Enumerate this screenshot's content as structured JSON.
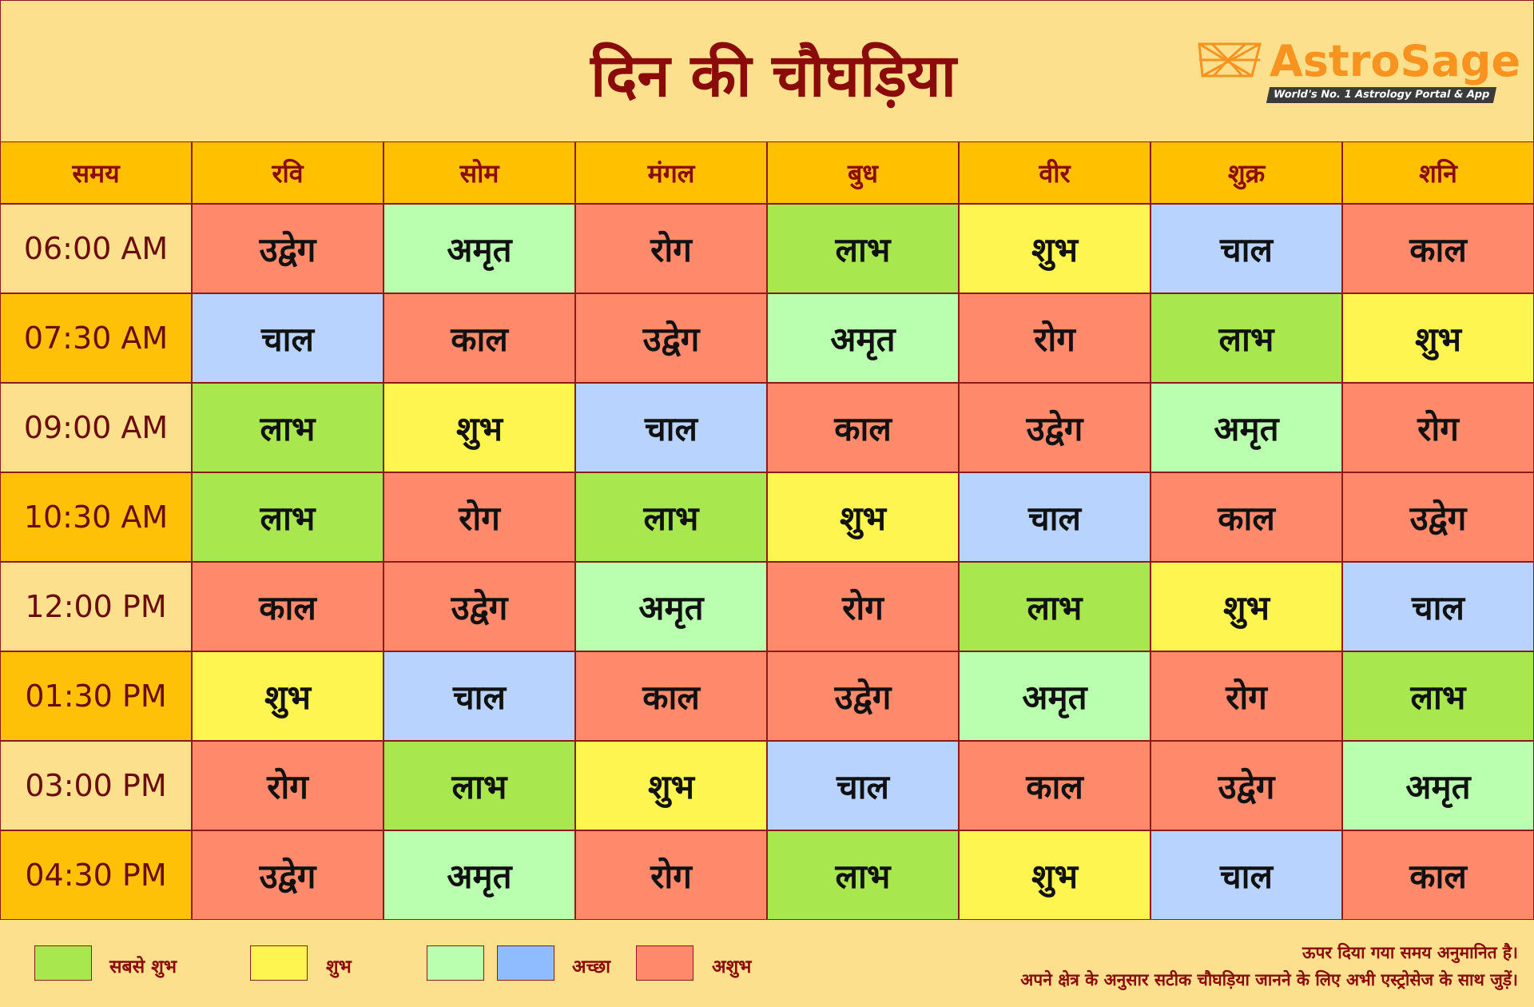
{
  "header": {
    "title": "दिन की चौघड़िया",
    "logo": {
      "brand": "AstroSage",
      "tagline": "World's No. 1 Astrology Portal & App"
    }
  },
  "table": {
    "columns": [
      "समय",
      "रवि",
      "सोम",
      "मंगल",
      "बुध",
      "वीर",
      "शुक्र",
      "शनि"
    ],
    "rows": [
      {
        "time": "06:00 AM",
        "time_color": "#fde08e",
        "cells": [
          {
            "text": "उद्वेग",
            "color": "#fe8a6b"
          },
          {
            "text": "अमृत",
            "color": "#baffb0"
          },
          {
            "text": "रोग",
            "color": "#fe8a6b"
          },
          {
            "text": "लाभ",
            "color": "#a8e84e"
          },
          {
            "text": "शुभ",
            "color": "#fff550"
          },
          {
            "text": "चाल",
            "color": "#b8d4fe"
          },
          {
            "text": "काल",
            "color": "#fe8a6b"
          }
        ]
      },
      {
        "time": "07:30 AM",
        "time_color": "#ffc107",
        "cells": [
          {
            "text": "चाल",
            "color": "#b8d4fe"
          },
          {
            "text": "काल",
            "color": "#fe8a6b"
          },
          {
            "text": "उद्वेग",
            "color": "#fe8a6b"
          },
          {
            "text": "अमृत",
            "color": "#baffb0"
          },
          {
            "text": "रोग",
            "color": "#fe8a6b"
          },
          {
            "text": "लाभ",
            "color": "#a8e84e"
          },
          {
            "text": "शुभ",
            "color": "#fff550"
          }
        ]
      },
      {
        "time": "09:00 AM",
        "time_color": "#fde08e",
        "cells": [
          {
            "text": "लाभ",
            "color": "#a8e84e"
          },
          {
            "text": "शुभ",
            "color": "#fff550"
          },
          {
            "text": "चाल",
            "color": "#b8d4fe"
          },
          {
            "text": "काल",
            "color": "#fe8a6b"
          },
          {
            "text": "उद्वेग",
            "color": "#fe8a6b"
          },
          {
            "text": "अमृत",
            "color": "#baffb0"
          },
          {
            "text": "रोग",
            "color": "#fe8a6b"
          }
        ]
      },
      {
        "time": "10:30 AM",
        "time_color": "#ffc107",
        "cells": [
          {
            "text": "लाभ",
            "color": "#a8e84e"
          },
          {
            "text": "रोग",
            "color": "#fe8a6b"
          },
          {
            "text": "लाभ",
            "color": "#a8e84e"
          },
          {
            "text": "शुभ",
            "color": "#fff550"
          },
          {
            "text": "चाल",
            "color": "#b8d4fe"
          },
          {
            "text": "काल",
            "color": "#fe8a6b"
          },
          {
            "text": "उद्वेग",
            "color": "#fe8a6b"
          }
        ]
      },
      {
        "time": "12:00 PM",
        "time_color": "#fde08e",
        "cells": [
          {
            "text": "काल",
            "color": "#fe8a6b"
          },
          {
            "text": "उद्वेग",
            "color": "#fe8a6b"
          },
          {
            "text": "अमृत",
            "color": "#baffb0"
          },
          {
            "text": "रोग",
            "color": "#fe8a6b"
          },
          {
            "text": "लाभ",
            "color": "#a8e84e"
          },
          {
            "text": "शुभ",
            "color": "#fff550"
          },
          {
            "text": "चाल",
            "color": "#b8d4fe"
          }
        ]
      },
      {
        "time": "01:30 PM",
        "time_color": "#ffc107",
        "cells": [
          {
            "text": "शुभ",
            "color": "#fff550"
          },
          {
            "text": "चाल",
            "color": "#b8d4fe"
          },
          {
            "text": "काल",
            "color": "#fe8a6b"
          },
          {
            "text": "उद्वेग",
            "color": "#fe8a6b"
          },
          {
            "text": "अमृत",
            "color": "#baffb0"
          },
          {
            "text": "रोग",
            "color": "#fe8a6b"
          },
          {
            "text": "लाभ",
            "color": "#a8e84e"
          }
        ]
      },
      {
        "time": "03:00 PM",
        "time_color": "#fde08e",
        "cells": [
          {
            "text": "रोग",
            "color": "#fe8a6b"
          },
          {
            "text": "लाभ",
            "color": "#a8e84e"
          },
          {
            "text": "शुभ",
            "color": "#fff550"
          },
          {
            "text": "चाल",
            "color": "#b8d4fe"
          },
          {
            "text": "काल",
            "color": "#fe8a6b"
          },
          {
            "text": "उद्वेग",
            "color": "#fe8a6b"
          },
          {
            "text": "अमृत",
            "color": "#baffb0"
          }
        ]
      },
      {
        "time": "04:30 PM",
        "time_color": "#ffc107",
        "cells": [
          {
            "text": "उद्वेग",
            "color": "#fe8a6b"
          },
          {
            "text": "अमृत",
            "color": "#baffb0"
          },
          {
            "text": "रोग",
            "color": "#fe8a6b"
          },
          {
            "text": "लाभ",
            "color": "#a8e84e"
          },
          {
            "text": "शुभ",
            "color": "#fff550"
          },
          {
            "text": "चाल",
            "color": "#b8d4fe"
          },
          {
            "text": "काल",
            "color": "#fe8a6b"
          }
        ]
      }
    ]
  },
  "legend": [
    {
      "label": "सबसे शुभ",
      "colors": [
        "#a8e84e"
      ]
    },
    {
      "label": "शुभ",
      "colors": [
        "#fff550"
      ]
    },
    {
      "label": "अच्छा",
      "colors": [
        "#baffb0",
        "#8fbcff"
      ]
    },
    {
      "label": "अशुभ",
      "colors": [
        "#fe8a6b"
      ]
    }
  ],
  "notes": [
    "ऊपर दिया गया समय अनुमानित है।",
    "अपने क्षेत्र के अनुसार सटीक चौघड़िया जानने के लिए अभी एस्ट्रोसेज के साथ जुड़ें।"
  ]
}
